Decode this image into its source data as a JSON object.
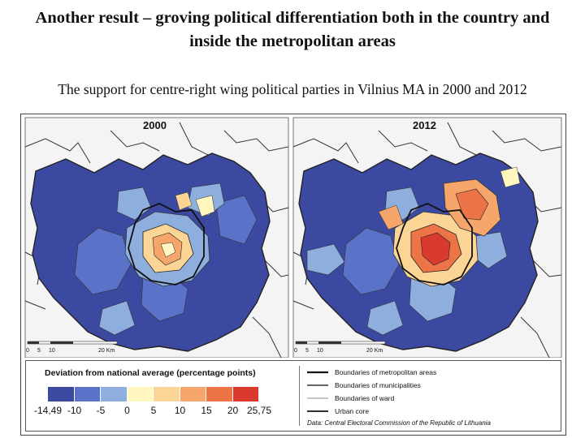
{
  "slide": {
    "title": "Another result – groving political differentiation both in the country and inside the metropolitan areas",
    "subtitle": "The support for centre-right wing political parties in Vilnius MA in 2000 and 2012"
  },
  "maps": [
    {
      "year": "2000"
    },
    {
      "year": "2012"
    }
  ],
  "scale_bar": {
    "labels": [
      "0",
      "5",
      "10",
      "20 Km"
    ]
  },
  "legend": {
    "title": "Deviation from national average (percentage points)",
    "classes": [
      {
        "color": "#3b4aa0"
      },
      {
        "color": "#5a72c8"
      },
      {
        "color": "#8eaede"
      },
      {
        "color": "#fff6c0"
      },
      {
        "color": "#fbd596"
      },
      {
        "color": "#f6a66a"
      },
      {
        "color": "#ec7447"
      },
      {
        "color": "#d93a2e"
      }
    ],
    "breaks": [
      "-14,49",
      "-10",
      "-5",
      "0",
      "5",
      "10",
      "15",
      "20",
      "25,75"
    ]
  },
  "boundaries": [
    {
      "label": "Boundaries of metropolitan areas"
    },
    {
      "label": "Boundaries of municipalities"
    },
    {
      "label": "Boundaries of ward"
    },
    {
      "label": "Urban core"
    }
  ],
  "source": "Data: Central Electoral Commission of the Republic of Lithuania"
}
